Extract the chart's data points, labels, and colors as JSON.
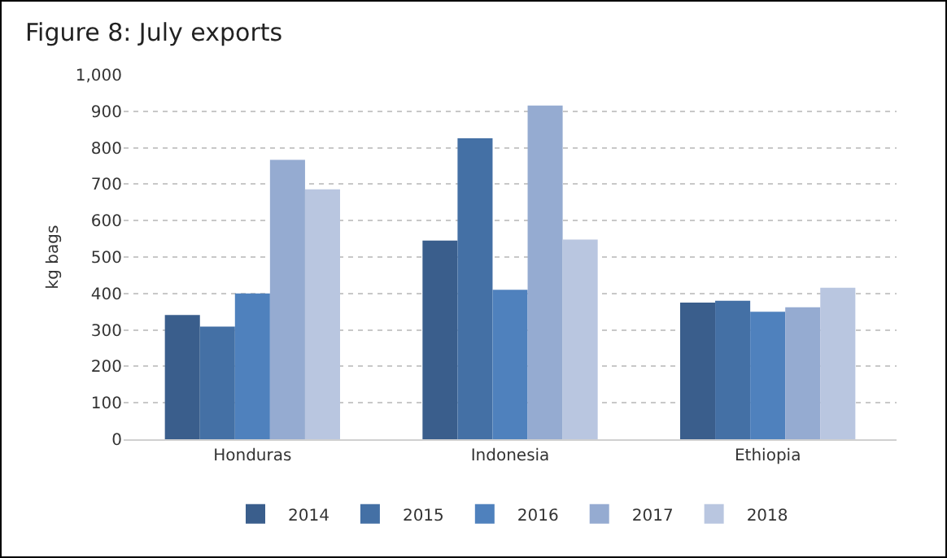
{
  "chart_data": {
    "type": "bar",
    "title": "Figure 8: July exports",
    "ylabel": "kg bags",
    "categories": [
      "Honduras",
      "Indonesia",
      "Ethiopia"
    ],
    "series": [
      {
        "name": "2014",
        "color": "#3a5e8c",
        "values": [
          341,
          545,
          375
        ]
      },
      {
        "name": "2015",
        "color": "#4470a5",
        "values": [
          309,
          826,
          380
        ]
      },
      {
        "name": "2016",
        "color": "#4f81bd",
        "values": [
          400,
          410,
          350
        ]
      },
      {
        "name": "2017",
        "color": "#95abd1",
        "values": [
          767,
          916,
          362
        ]
      },
      {
        "name": "2018",
        "color": "#b9c6e0",
        "values": [
          686,
          548,
          416
        ]
      }
    ],
    "ylim": [
      0,
      1000
    ],
    "yticks": [
      0,
      {
        "value": 100,
        "label": "100"
      },
      {
        "value": 200,
        "label": "200"
      },
      {
        "value": 300,
        "label": "300"
      },
      {
        "value": 400,
        "label": "400"
      },
      {
        "value": 500,
        "label": "500"
      },
      {
        "value": 600,
        "label": "600"
      },
      {
        "value": 700,
        "label": "700"
      },
      {
        "value": 800,
        "label": "800"
      },
      {
        "value": 900,
        "label": "900"
      },
      {
        "value": 1000,
        "label": "1,000"
      }
    ],
    "grid": "y",
    "legend": "bottom"
  }
}
